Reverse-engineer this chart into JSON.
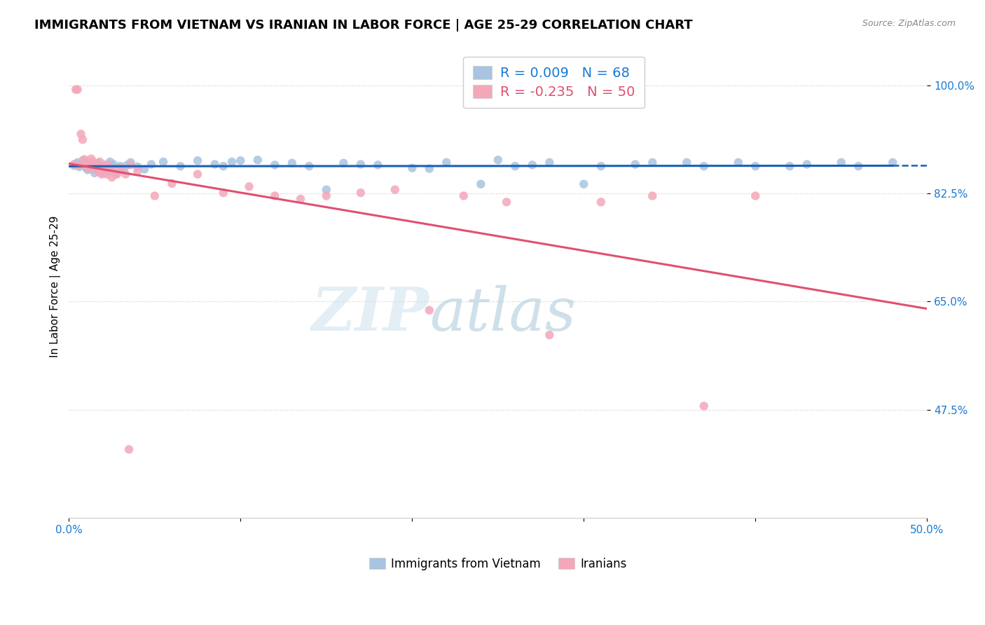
{
  "title": "IMMIGRANTS FROM VIETNAM VS IRANIAN IN LABOR FORCE | AGE 25-29 CORRELATION CHART",
  "source": "Source: ZipAtlas.com",
  "ylabel": "In Labor Force | Age 25-29",
  "ytick_labels": [
    "100.0%",
    "82.5%",
    "65.0%",
    "47.5%"
  ],
  "ytick_values": [
    1.0,
    0.825,
    0.65,
    0.475
  ],
  "xlim": [
    0.0,
    0.5
  ],
  "ylim": [
    0.3,
    1.05
  ],
  "legend_entries": [
    {
      "label": "Immigrants from Vietnam",
      "color": "#a8c4e0",
      "R": "0.009",
      "N": "68"
    },
    {
      "label": "Iranians",
      "color": "#f4a7b9",
      "R": "-0.235",
      "N": "50"
    }
  ],
  "vietnam_scatter_x": [
    0.003,
    0.004,
    0.005,
    0.006,
    0.007,
    0.008,
    0.009,
    0.01,
    0.011,
    0.012,
    0.013,
    0.014,
    0.015,
    0.016,
    0.017,
    0.018,
    0.019,
    0.02,
    0.021,
    0.022,
    0.023,
    0.024,
    0.025,
    0.026,
    0.028,
    0.03,
    0.032,
    0.034,
    0.036,
    0.04,
    0.044,
    0.048,
    0.055,
    0.065,
    0.075,
    0.085,
    0.095,
    0.11,
    0.13,
    0.15,
    0.17,
    0.2,
    0.22,
    0.25,
    0.27,
    0.3,
    0.33,
    0.36,
    0.4,
    0.43,
    0.46,
    0.48,
    0.09,
    0.1,
    0.12,
    0.14,
    0.16,
    0.18,
    0.21,
    0.24,
    0.26,
    0.28,
    0.31,
    0.34,
    0.37,
    0.39,
    0.42,
    0.45
  ],
  "vietnam_scatter_y": [
    0.87,
    0.872,
    0.875,
    0.868,
    0.871,
    0.878,
    0.874,
    0.866,
    0.863,
    0.869,
    0.872,
    0.865,
    0.858,
    0.871,
    0.874,
    0.867,
    0.862,
    0.858,
    0.871,
    0.865,
    0.862,
    0.876,
    0.869,
    0.872,
    0.866,
    0.869,
    0.864,
    0.871,
    0.875,
    0.868,
    0.864,
    0.872,
    0.876,
    0.869,
    0.878,
    0.872,
    0.876,
    0.879,
    0.874,
    0.831,
    0.872,
    0.866,
    0.875,
    0.879,
    0.871,
    0.84,
    0.872,
    0.875,
    0.869,
    0.872,
    0.869,
    0.875,
    0.869,
    0.878,
    0.871,
    0.869,
    0.874,
    0.871,
    0.865,
    0.84,
    0.869,
    0.875,
    0.869,
    0.875,
    0.869,
    0.875,
    0.869,
    0.875
  ],
  "iranian_scatter_x": [
    0.003,
    0.004,
    0.005,
    0.006,
    0.007,
    0.008,
    0.009,
    0.01,
    0.011,
    0.012,
    0.013,
    0.014,
    0.015,
    0.016,
    0.017,
    0.018,
    0.019,
    0.02,
    0.021,
    0.022,
    0.023,
    0.024,
    0.025,
    0.027,
    0.03,
    0.033,
    0.036,
    0.04,
    0.05,
    0.06,
    0.075,
    0.09,
    0.105,
    0.12,
    0.135,
    0.15,
    0.17,
    0.19,
    0.21,
    0.23,
    0.255,
    0.28,
    0.31,
    0.34,
    0.37,
    0.4,
    0.01,
    0.022,
    0.028,
    0.035
  ],
  "iranian_scatter_y": [
    0.872,
    0.993,
    0.993,
    0.87,
    0.921,
    0.912,
    0.88,
    0.875,
    0.87,
    0.865,
    0.881,
    0.876,
    0.871,
    0.866,
    0.861,
    0.876,
    0.856,
    0.866,
    0.871,
    0.856,
    0.871,
    0.866,
    0.851,
    0.856,
    0.866,
    0.856,
    0.871,
    0.861,
    0.821,
    0.841,
    0.856,
    0.826,
    0.836,
    0.821,
    0.816,
    0.821,
    0.826,
    0.831,
    0.636,
    0.821,
    0.811,
    0.596,
    0.811,
    0.821,
    0.481,
    0.821,
    0.871,
    0.863,
    0.856,
    0.411
  ],
  "vietnam_line_color": "#1a5fb4",
  "iran_line_color": "#e05070",
  "scatter_vietnam_color": "#a8c4e0",
  "scatter_iran_color": "#f4a7b9",
  "scatter_size": 80,
  "background_color": "#ffffff",
  "grid_color": "#cccccc",
  "title_fontsize": 13,
  "axis_label_fontsize": 11,
  "tick_fontsize": 11,
  "tick_color": "#1a7ad4",
  "legend_R_color_vietnam": "#1a7ad4",
  "legend_R_color_iran": "#e05070",
  "legend_N_color": "#1a7ad4"
}
